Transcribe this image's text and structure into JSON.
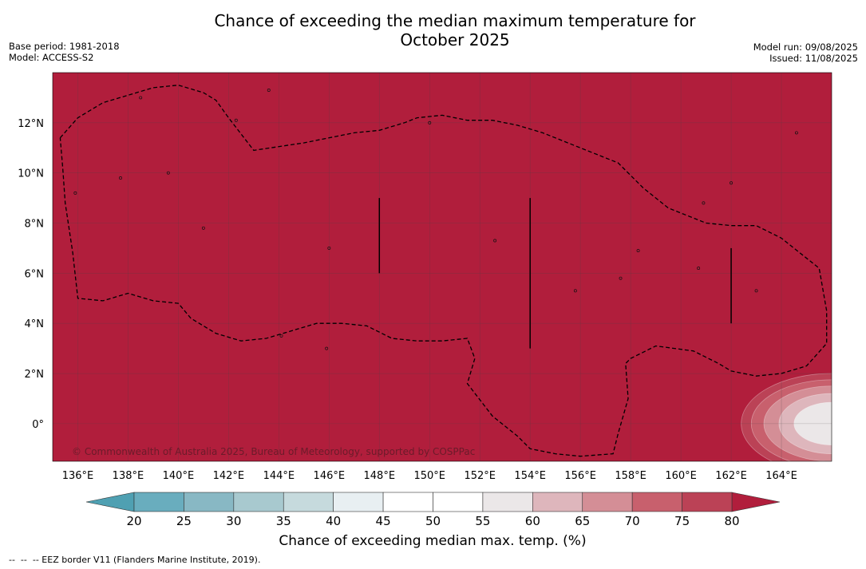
{
  "title_line1": "Chance of exceeding the median maximum temperature for",
  "title_line2": "October 2025",
  "base_period": "Base period: 1981-2018",
  "model": "Model: ACCESS-S2",
  "model_run": "Model run: 09/08/2025",
  "issued": "Issued: 11/08/2025",
  "copyright": "© Commonwealth of Australia 2025, Bureau of Meteorology, supported by COSPPac",
  "colorbar_title": "Chance of exceeding median max. temp. (%)",
  "footer_legend": "--  --  -- EEZ border V11 (Flanders Marine Institute, 2019).",
  "colors": {
    "background_field": "#b11e3c",
    "eez_line": "#000000",
    "grid_line": "#444444"
  },
  "map": {
    "lon_range": [
      135,
      166
    ],
    "lat_range": [
      -1.5,
      14
    ],
    "lon_ticks": [
      {
        "value": 136,
        "label": "136°E"
      },
      {
        "value": 138,
        "label": "138°E"
      },
      {
        "value": 140,
        "label": "140°E"
      },
      {
        "value": 142,
        "label": "142°E"
      },
      {
        "value": 144,
        "label": "144°E"
      },
      {
        "value": 146,
        "label": "146°E"
      },
      {
        "value": 148,
        "label": "148°E"
      },
      {
        "value": 150,
        "label": "150°E"
      },
      {
        "value": 152,
        "label": "152°E"
      },
      {
        "value": 154,
        "label": "154°E"
      },
      {
        "value": 156,
        "label": "156°E"
      },
      {
        "value": 158,
        "label": "158°E"
      },
      {
        "value": 160,
        "label": "160°E"
      },
      {
        "value": 162,
        "label": "162°E"
      },
      {
        "value": 164,
        "label": "164°E"
      }
    ],
    "lat_ticks": [
      {
        "value": 12,
        "label": "12°N"
      },
      {
        "value": 10,
        "label": "10°N"
      },
      {
        "value": 8,
        "label": "8°N"
      },
      {
        "value": 6,
        "label": "6°N"
      },
      {
        "value": 4,
        "label": "4°N"
      },
      {
        "value": 2,
        "label": "2°N"
      },
      {
        "value": 0,
        "label": "0°"
      }
    ],
    "eez_border": [
      [
        135.3,
        11.4
      ],
      [
        136.0,
        12.2
      ],
      [
        137.0,
        12.8
      ],
      [
        138.0,
        13.1
      ],
      [
        139.0,
        13.4
      ],
      [
        140.0,
        13.5
      ],
      [
        141.0,
        13.2
      ],
      [
        141.5,
        12.9
      ],
      [
        142.0,
        12.2
      ],
      [
        143.0,
        10.9
      ],
      [
        145.0,
        11.2
      ],
      [
        147.0,
        11.6
      ],
      [
        148.0,
        11.7
      ],
      [
        149.0,
        12.0
      ],
      [
        149.5,
        12.2
      ],
      [
        150.5,
        12.3
      ],
      [
        151.5,
        12.1
      ],
      [
        152.5,
        12.1
      ],
      [
        153.5,
        11.9
      ],
      [
        154.5,
        11.6
      ],
      [
        156.0,
        11.0
      ],
      [
        157.5,
        10.4
      ],
      [
        158.5,
        9.4
      ],
      [
        159.5,
        8.6
      ],
      [
        161.0,
        8.0
      ],
      [
        162.0,
        7.9
      ],
      [
        163.0,
        7.9
      ],
      [
        164.0,
        7.4
      ],
      [
        165.5,
        6.2
      ],
      [
        165.8,
        4.5
      ],
      [
        165.8,
        3.2
      ],
      [
        165.0,
        2.3
      ],
      [
        164.0,
        2.0
      ],
      [
        163.0,
        1.9
      ],
      [
        162.0,
        2.1
      ],
      [
        161.5,
        2.4
      ],
      [
        160.5,
        2.9
      ],
      [
        159.0,
        3.1
      ],
      [
        158.0,
        2.6
      ],
      [
        157.8,
        2.4
      ],
      [
        157.9,
        1.0
      ],
      [
        157.5,
        -0.4
      ],
      [
        157.3,
        -1.2
      ],
      [
        156.0,
        -1.3
      ],
      [
        155.0,
        -1.2
      ],
      [
        154.0,
        -1.0
      ],
      [
        153.5,
        -0.5
      ],
      [
        152.5,
        0.3
      ],
      [
        151.5,
        1.6
      ],
      [
        151.8,
        2.6
      ],
      [
        151.5,
        3.4
      ],
      [
        150.5,
        3.3
      ],
      [
        149.5,
        3.3
      ],
      [
        148.5,
        3.4
      ],
      [
        147.5,
        3.9
      ],
      [
        146.5,
        4.0
      ],
      [
        145.5,
        4.0
      ],
      [
        144.5,
        3.7
      ],
      [
        143.5,
        3.4
      ],
      [
        142.5,
        3.3
      ],
      [
        141.5,
        3.6
      ],
      [
        140.5,
        4.2
      ],
      [
        140.0,
        4.8
      ],
      [
        139.0,
        4.9
      ],
      [
        138.0,
        5.2
      ],
      [
        137.0,
        4.9
      ],
      [
        136.0,
        5.0
      ],
      [
        135.8,
        6.8
      ],
      [
        135.5,
        8.8
      ],
      [
        135.4,
        10.2
      ],
      [
        135.3,
        11.4
      ]
    ],
    "vertical_lines": [
      {
        "lon": 148.0,
        "lat_from": 6.0,
        "lat_to": 9.0
      },
      {
        "lon": 154.0,
        "lat_from": 3.0,
        "lat_to": 9.0
      },
      {
        "lon": 162.0,
        "lat_from": 4.0,
        "lat_to": 7.0
      }
    ],
    "low_anomaly_region": {
      "center_lon": 166.0,
      "center_lat": 0.0,
      "levels": [
        {
          "value": 75,
          "radius_lon": 3.6,
          "radius_lat": 2.0
        },
        {
          "value": 70,
          "radius_lon": 3.2,
          "radius_lat": 1.75
        },
        {
          "value": 65,
          "radius_lon": 2.7,
          "radius_lat": 1.5
        },
        {
          "value": 60,
          "radius_lon": 2.1,
          "radius_lat": 1.2
        },
        {
          "value": 55,
          "radius_lon": 1.5,
          "radius_lat": 0.85
        }
      ]
    }
  },
  "colorbar": {
    "ticks": [
      "20",
      "25",
      "30",
      "35",
      "40",
      "45",
      "50",
      "55",
      "60",
      "65",
      "70",
      "75",
      "80"
    ],
    "bins": [
      {
        "from": 20,
        "to": 25,
        "color": "#69adbe"
      },
      {
        "from": 25,
        "to": 30,
        "color": "#88b8c4"
      },
      {
        "from": 30,
        "to": 35,
        "color": "#a8c9cf"
      },
      {
        "from": 35,
        "to": 40,
        "color": "#c6dadd"
      },
      {
        "from": 40,
        "to": 45,
        "color": "#e8eff2"
      },
      {
        "from": 45,
        "to": 50,
        "color": "#ffffff"
      },
      {
        "from": 50,
        "to": 55,
        "color": "#ffffff"
      },
      {
        "from": 55,
        "to": 60,
        "color": "#ebe7e8"
      },
      {
        "from": 60,
        "to": 65,
        "color": "#deb6bc"
      },
      {
        "from": 65,
        "to": 70,
        "color": "#d48e96"
      },
      {
        "from": 70,
        "to": 75,
        "color": "#c8606d"
      },
      {
        "from": 75,
        "to": 80,
        "color": "#bb4256"
      }
    ],
    "under_color": "#4fa0b2",
    "over_color": "#b11e3c"
  }
}
